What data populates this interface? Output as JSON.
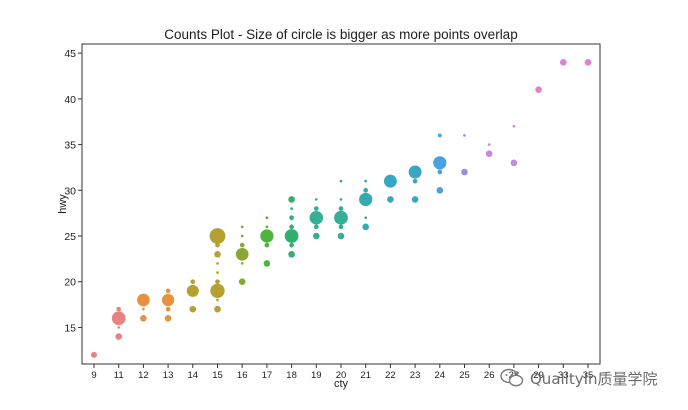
{
  "chart_data": {
    "type": "scatter",
    "title": "Counts Plot - Size of circle is bigger as more points overlap",
    "xlabel": "cty",
    "ylabel": "hwy",
    "x_ticks": [
      9,
      11,
      12,
      13,
      14,
      15,
      16,
      17,
      18,
      19,
      20,
      21,
      22,
      23,
      24,
      25,
      26,
      28,
      29,
      33,
      35
    ],
    "y_ticks": [
      15,
      20,
      25,
      30,
      35,
      40,
      45
    ],
    "ylim": [
      11,
      46
    ],
    "grid": false,
    "series": [
      {
        "color": "#e88480",
        "points": [
          {
            "x": 9,
            "y": 12,
            "count": 5
          },
          {
            "x": 11,
            "y": 14,
            "count": 6
          },
          {
            "x": 11,
            "y": 15,
            "count": 1
          },
          {
            "x": 11,
            "y": 16,
            "count": 26
          },
          {
            "x": 11,
            "y": 17,
            "count": 3
          }
        ]
      },
      {
        "color": "#e6923e",
        "points": [
          {
            "x": 12,
            "y": 16,
            "count": 6
          },
          {
            "x": 12,
            "y": 17,
            "count": 1
          },
          {
            "x": 12,
            "y": 18,
            "count": 22
          },
          {
            "x": 13,
            "y": 16,
            "count": 6
          },
          {
            "x": 13,
            "y": 17,
            "count": 3
          },
          {
            "x": 13,
            "y": 18,
            "count": 21
          },
          {
            "x": 13,
            "y": 19,
            "count": 3
          }
        ]
      },
      {
        "color": "#b5a132",
        "points": [
          {
            "x": 14,
            "y": 17,
            "count": 6
          },
          {
            "x": 14,
            "y": 19,
            "count": 20
          },
          {
            "x": 14,
            "y": 20,
            "count": 3
          },
          {
            "x": 15,
            "y": 17,
            "count": 6
          },
          {
            "x": 15,
            "y": 18,
            "count": 1
          },
          {
            "x": 15,
            "y": 19,
            "count": 28
          },
          {
            "x": 15,
            "y": 20,
            "count": 3
          },
          {
            "x": 15,
            "y": 21,
            "count": 1
          },
          {
            "x": 15,
            "y": 22,
            "count": 1
          },
          {
            "x": 15,
            "y": 23,
            "count": 6
          },
          {
            "x": 15,
            "y": 24,
            "count": 3
          },
          {
            "x": 15,
            "y": 25,
            "count": 34
          }
        ]
      },
      {
        "color": "#88a834",
        "points": [
          {
            "x": 16,
            "y": 20,
            "count": 6
          },
          {
            "x": 16,
            "y": 22,
            "count": 1
          },
          {
            "x": 16,
            "y": 23,
            "count": 22
          },
          {
            "x": 16,
            "y": 24,
            "count": 3
          },
          {
            "x": 16,
            "y": 25,
            "count": 1
          },
          {
            "x": 16,
            "y": 26,
            "count": 1
          }
        ]
      },
      {
        "color": "#4fb33e",
        "points": [
          {
            "x": 17,
            "y": 22,
            "count": 6
          },
          {
            "x": 17,
            "y": 24,
            "count": 3
          },
          {
            "x": 17,
            "y": 25,
            "count": 24
          },
          {
            "x": 17,
            "y": 26,
            "count": 1
          },
          {
            "x": 17,
            "y": 27,
            "count": 1
          }
        ]
      },
      {
        "color": "#35ad71",
        "points": [
          {
            "x": 18,
            "y": 23,
            "count": 6
          },
          {
            "x": 18,
            "y": 24,
            "count": 3
          },
          {
            "x": 18,
            "y": 25,
            "count": 26
          },
          {
            "x": 18,
            "y": 26,
            "count": 3
          },
          {
            "x": 18,
            "y": 27,
            "count": 3
          },
          {
            "x": 18,
            "y": 28,
            "count": 1
          },
          {
            "x": 18,
            "y": 29,
            "count": 6
          }
        ]
      },
      {
        "color": "#34ae94",
        "points": [
          {
            "x": 19,
            "y": 25,
            "count": 6
          },
          {
            "x": 19,
            "y": 26,
            "count": 3
          },
          {
            "x": 19,
            "y": 27,
            "count": 25
          },
          {
            "x": 19,
            "y": 28,
            "count": 3
          },
          {
            "x": 19,
            "y": 29,
            "count": 1
          },
          {
            "x": 20,
            "y": 25,
            "count": 6
          },
          {
            "x": 20,
            "y": 26,
            "count": 3
          },
          {
            "x": 20,
            "y": 27,
            "count": 26
          },
          {
            "x": 20,
            "y": 28,
            "count": 3
          },
          {
            "x": 20,
            "y": 29,
            "count": 1
          },
          {
            "x": 20,
            "y": 31,
            "count": 1
          }
        ]
      },
      {
        "color": "#35aab0",
        "points": [
          {
            "x": 21,
            "y": 26,
            "count": 6
          },
          {
            "x": 21,
            "y": 27,
            "count": 1
          },
          {
            "x": 21,
            "y": 29,
            "count": 24
          },
          {
            "x": 21,
            "y": 30,
            "count": 3
          },
          {
            "x": 21,
            "y": 31,
            "count": 1
          }
        ]
      },
      {
        "color": "#38a7c4",
        "points": [
          {
            "x": 22,
            "y": 29,
            "count": 6
          },
          {
            "x": 22,
            "y": 31,
            "count": 23
          },
          {
            "x": 23,
            "y": 29,
            "count": 6
          },
          {
            "x": 23,
            "y": 31,
            "count": 3
          },
          {
            "x": 23,
            "y": 32,
            "count": 23
          }
        ]
      },
      {
        "color": "#49a0e3",
        "points": [
          {
            "x": 24,
            "y": 30,
            "count": 6
          },
          {
            "x": 24,
            "y": 32,
            "count": 3
          },
          {
            "x": 24,
            "y": 33,
            "count": 24
          },
          {
            "x": 24,
            "y": 36,
            "count": 2
          }
        ]
      },
      {
        "color": "#9d8ce3",
        "points": [
          {
            "x": 25,
            "y": 32,
            "count": 6
          },
          {
            "x": 25,
            "y": 36,
            "count": 1
          }
        ]
      },
      {
        "color": "#c488e0",
        "points": [
          {
            "x": 26,
            "y": 34,
            "count": 6
          },
          {
            "x": 26,
            "y": 35,
            "count": 1
          },
          {
            "x": 28,
            "y": 33,
            "count": 6
          },
          {
            "x": 28,
            "y": 37,
            "count": 1
          }
        ]
      },
      {
        "color": "#e07fd3",
        "points": [
          {
            "x": 29,
            "y": 41,
            "count": 6
          },
          {
            "x": 33,
            "y": 44,
            "count": 6
          },
          {
            "x": 35,
            "y": 44,
            "count": 6
          }
        ]
      }
    ]
  },
  "watermark": {
    "text": "QualityIn质量学院"
  }
}
